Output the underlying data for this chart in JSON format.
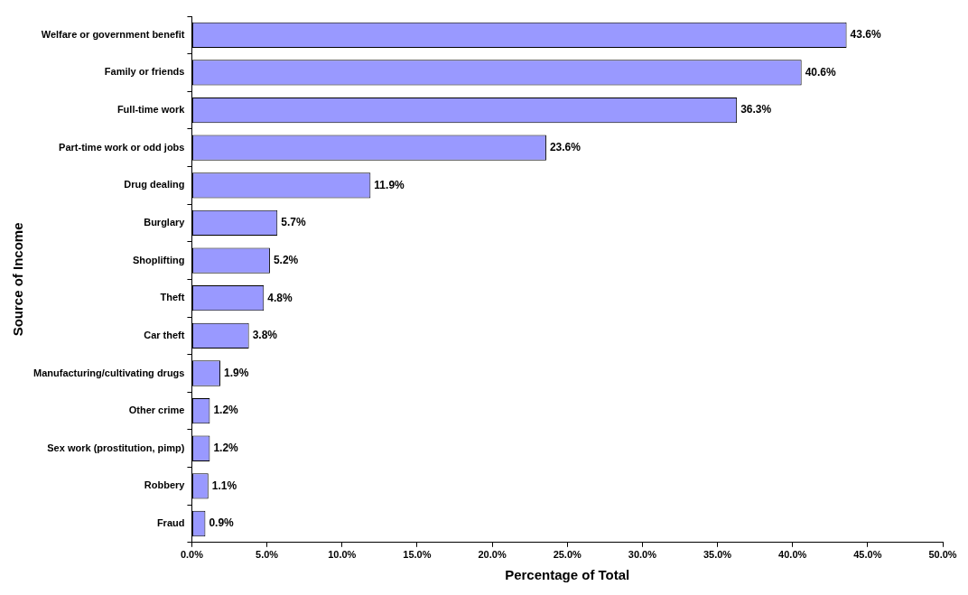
{
  "chart_data": {
    "type": "bar",
    "orientation": "horizontal",
    "xlabel": "Percentage of Total",
    "ylabel": "Source of Income",
    "categories": [
      "Welfare or government benefit",
      "Family or friends",
      "Full-time work",
      "Part-time work or odd jobs",
      "Drug dealing",
      "Burglary",
      "Shoplifting",
      "Theft",
      "Car theft",
      "Manufacturing/cultivating drugs",
      "Other crime",
      "Sex work (prostitution, pimp)",
      "Robbery",
      "Fraud"
    ],
    "values": [
      43.6,
      40.6,
      36.3,
      23.6,
      11.9,
      5.7,
      5.2,
      4.8,
      3.8,
      1.9,
      1.2,
      1.2,
      1.1,
      0.9
    ],
    "value_labels": [
      "43.6%",
      "40.6%",
      "36.3%",
      "23.6%",
      "11.9%",
      "5.7%",
      "5.2%",
      "4.8%",
      "3.8%",
      "1.9%",
      "1.2%",
      "1.2%",
      "1.1%",
      "0.9%"
    ],
    "color": "#9999ff",
    "xlim": [
      0,
      50
    ],
    "xticks": [
      {
        "value": 0,
        "label": "0.0%"
      },
      {
        "value": 5,
        "label": "5.0%"
      },
      {
        "value": 10,
        "label": "10.0%"
      },
      {
        "value": 15,
        "label": "15.0%"
      },
      {
        "value": 20,
        "label": "20.0%"
      },
      {
        "value": 25,
        "label": "25.0%"
      },
      {
        "value": 30,
        "label": "30.0%"
      },
      {
        "value": 35,
        "label": "35.0%"
      },
      {
        "value": 40,
        "label": "40.0%"
      },
      {
        "value": 45,
        "label": "45.0%"
      },
      {
        "value": 50,
        "label": "50.0%"
      }
    ],
    "grid": false,
    "legend": false
  }
}
